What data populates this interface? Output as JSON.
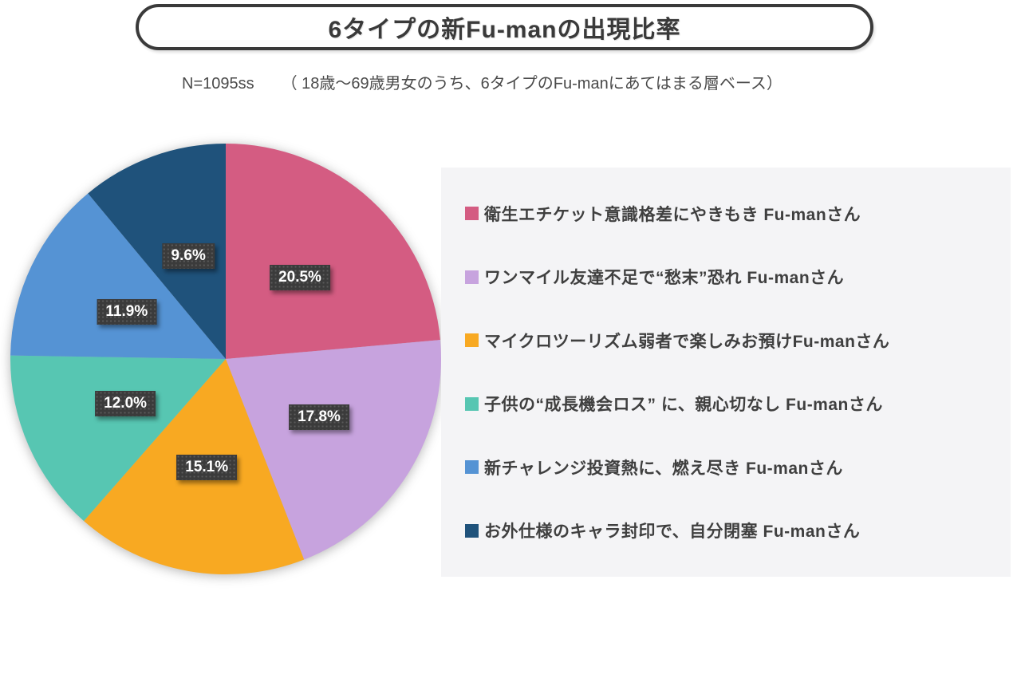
{
  "chart_data": {
    "type": "pie",
    "title": "6タイプの新Fu-manの出現比率",
    "note": "N=1095ss",
    "base_note": "（ 18歳〜69歳男女のうち、6タイプのFu-manにあてはまる層ベース）",
    "unit": "%",
    "legend_position": "right",
    "data_labels_format": "value%",
    "start_angle_deg": 0,
    "direction": "clockwise",
    "slices": [
      {
        "label": "衛生エチケット意識格差にやきもき Fu-manさん",
        "value": 20.5,
        "display": "20.5%",
        "color": "#d45c82"
      },
      {
        "label": "ワンマイル友達不足で“愁末”恐れ Fu-manさん",
        "value": 17.8,
        "display": "17.8%",
        "color": "#c7a3de"
      },
      {
        "label": "マイクロツーリズム弱者で楽しみお預けFu-manさん",
        "value": 15.1,
        "display": "15.1%",
        "color": "#f8a922"
      },
      {
        "label": "子供の“成長機会ロス” に、親心切なし Fu-manさん",
        "value": 12.0,
        "display": "12.0%",
        "color": "#57c6b2"
      },
      {
        "label": "新チャレンジ投資熱に、燃え尽き Fu-manさん",
        "value": 11.9,
        "display": "11.9%",
        "color": "#5593d4"
      },
      {
        "label": "お外仕様のキャラ封印で、自分閉塞 Fu-manさん",
        "value": 9.6,
        "display": "9.6%",
        "color": "#1f527b"
      }
    ],
    "colors": {
      "label_box_bg": "#3b3b3b",
      "label_text": "#ffffff",
      "legend_panel_bg": "#f4f4f6",
      "legend_text": "#3f3f3f",
      "title_text": "#3a3a3a",
      "title_border": "#3a3a3a"
    }
  }
}
